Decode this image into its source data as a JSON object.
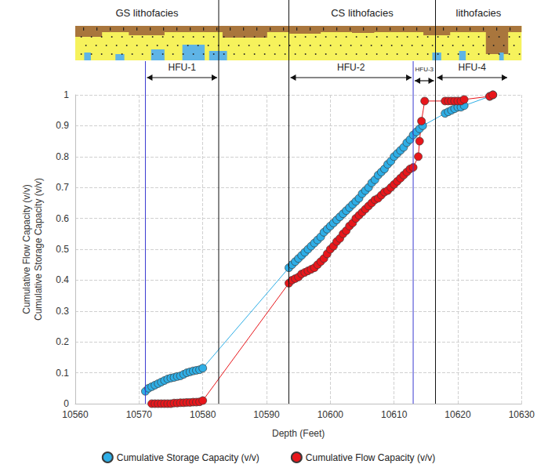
{
  "chart_data": {
    "type": "line",
    "xlabel": "Depth (Feet)",
    "ylabel": [
      "Cumulative Flow Capacity (v/v)",
      "Cumulative Storage Capacity (v/v)"
    ],
    "xlim": [
      10560,
      10630
    ],
    "xticks": [
      10560,
      10570,
      10580,
      10590,
      10600,
      10610,
      10620,
      10630
    ],
    "ylim": [
      0,
      1
    ],
    "yticks": [
      0,
      0.1,
      0.2,
      0.3,
      0.4,
      0.5,
      0.6,
      0.7,
      0.8,
      0.9,
      1
    ],
    "grid": true,
    "legend": "bottom",
    "marker": "circle",
    "series": [
      {
        "name": "Cumulative Storage Capacity (v/v)",
        "color": "#2eaee6",
        "x": [
          10571,
          10571.5,
          10572,
          10572.5,
          10573,
          10573.5,
          10574,
          10574.5,
          10575,
          10575.5,
          10576,
          10576.5,
          10577,
          10577.5,
          10578,
          10578.5,
          10579,
          10579.5,
          10580,
          10593.5,
          10594,
          10594.5,
          10595,
          10595.5,
          10596,
          10596.5,
          10597,
          10597.5,
          10598,
          10598.5,
          10599,
          10599.5,
          10600,
          10600.5,
          10601,
          10601.5,
          10602,
          10602.5,
          10603,
          10603.5,
          10604,
          10604.5,
          10605,
          10605.5,
          10606,
          10606.5,
          10607,
          10607.5,
          10608,
          10608.5,
          10609,
          10609.5,
          10610,
          10610.5,
          10611,
          10611.5,
          10612,
          10612.5,
          10613,
          10613.5,
          10614,
          10614.5,
          10618,
          10618.5,
          10619,
          10619.5,
          10620,
          10620.5,
          10621,
          10625,
          10625.5
        ],
        "values": [
          0.04,
          0.05,
          0.055,
          0.06,
          0.065,
          0.07,
          0.075,
          0.08,
          0.083,
          0.085,
          0.088,
          0.09,
          0.095,
          0.1,
          0.103,
          0.106,
          0.108,
          0.11,
          0.115,
          0.44,
          0.45,
          0.46,
          0.47,
          0.48,
          0.49,
          0.5,
          0.51,
          0.52,
          0.53,
          0.54,
          0.555,
          0.565,
          0.575,
          0.585,
          0.595,
          0.605,
          0.615,
          0.625,
          0.635,
          0.645,
          0.655,
          0.665,
          0.68,
          0.69,
          0.7,
          0.715,
          0.725,
          0.74,
          0.75,
          0.76,
          0.775,
          0.785,
          0.8,
          0.81,
          0.82,
          0.83,
          0.845,
          0.855,
          0.87,
          0.88,
          0.89,
          0.9,
          0.94,
          0.945,
          0.95,
          0.955,
          0.96,
          0.96,
          0.965,
          0.995,
          1
        ]
      },
      {
        "name": "Cumulative Flow Capacity (v/v)",
        "color": "#e8161b",
        "x": [
          10572,
          10572.5,
          10573,
          10573.5,
          10574,
          10574.5,
          10575,
          10575.5,
          10576,
          10576.5,
          10577,
          10577.5,
          10578,
          10578.5,
          10579,
          10579.5,
          10580,
          10593.5,
          10594,
          10594.5,
          10595,
          10595.5,
          10596,
          10596.5,
          10597,
          10597.5,
          10598,
          10598.5,
          10599,
          10599.5,
          10600,
          10600.5,
          10601,
          10601.5,
          10602,
          10602.5,
          10603,
          10603.5,
          10604,
          10604.5,
          10605,
          10605.5,
          10606,
          10606.5,
          10607,
          10607.5,
          10608,
          10608.5,
          10609,
          10609.5,
          10610,
          10610.5,
          10611,
          10611.5,
          10612,
          10612.5,
          10613,
          10613.8,
          10614,
          10614.3,
          10614.8,
          10618,
          10618.5,
          10619,
          10619.5,
          10620,
          10620.5,
          10621,
          10625,
          10625.5
        ],
        "values": [
          0,
          0,
          0,
          0,
          0,
          0,
          0,
          0.002,
          0.002,
          0.003,
          0.003,
          0.004,
          0.004,
          0.005,
          0.005,
          0.006,
          0.01,
          0.39,
          0.4,
          0.405,
          0.41,
          0.42,
          0.425,
          0.43,
          0.435,
          0.44,
          0.45,
          0.46,
          0.47,
          0.485,
          0.5,
          0.51,
          0.525,
          0.535,
          0.55,
          0.56,
          0.575,
          0.585,
          0.6,
          0.61,
          0.62,
          0.63,
          0.64,
          0.65,
          0.66,
          0.665,
          0.675,
          0.685,
          0.69,
          0.7,
          0.71,
          0.72,
          0.73,
          0.74,
          0.75,
          0.76,
          0.765,
          0.8,
          0.85,
          0.915,
          0.98,
          0.98,
          0.98,
          0.98,
          0.98,
          0.98,
          0.98,
          0.985,
          0.995,
          1
        ]
      }
    ],
    "lithofacies": [
      {
        "label": "GS lithofacies",
        "from": 10560,
        "to": 10582.5
      },
      {
        "label": "CS lithofacies",
        "from": 10593.5,
        "to": 10616.5
      },
      {
        "label": "lithofacies",
        "from": 10616.5,
        "to": 10630
      }
    ],
    "facies_boundaries": [
      10582.5,
      10593.5,
      10616.5
    ],
    "hfu_boundaries": [
      10571,
      10613
    ],
    "hfu": [
      {
        "label": "HFU-1",
        "from": 10571,
        "to": 10582.5
      },
      {
        "label": "HFU-2",
        "from": 10593.5,
        "to": 10613
      },
      {
        "label": "HFU-3",
        "from": 10613,
        "to": 10616.5
      },
      {
        "label": "HFU-4",
        "from": 10616.5,
        "to": 10628
      }
    ]
  }
}
